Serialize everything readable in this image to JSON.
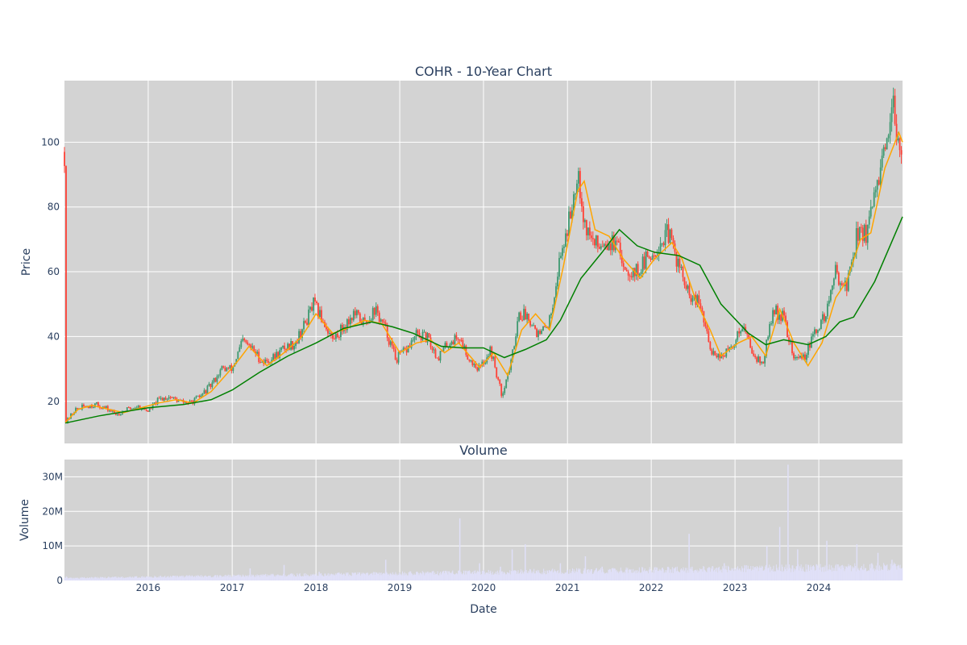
{
  "chart_data": {
    "type": "candlestick",
    "title": "COHR - 10-Year Chart",
    "xlabel": "Date",
    "x_ticks": [
      "2016",
      "2017",
      "2018",
      "2019",
      "2020",
      "2021",
      "2022",
      "2023",
      "2024"
    ],
    "x_range": [
      "2015-01-01",
      "2024-12-31"
    ],
    "price_panel": {
      "ylabel": "Price",
      "ylim": [
        7,
        119
      ],
      "y_ticks": [
        20,
        40,
        60,
        80,
        100
      ],
      "y_tick_labels": [
        "20",
        "40",
        "60",
        "80",
        "100"
      ],
      "grid": true,
      "series": [
        {
          "kind": "candlestick",
          "up_color": "#3d9970",
          "down_color": "#ff4136",
          "close": [
            [
              "2015-01-05",
              13.3
            ],
            [
              "2015-02-15",
              17.3
            ],
            [
              "2015-04-01",
              18.5
            ],
            [
              "2015-05-15",
              19.0
            ],
            [
              "2015-07-01",
              17.8
            ],
            [
              "2015-08-15",
              16.0
            ],
            [
              "2015-10-01",
              17.5
            ],
            [
              "2015-11-15",
              18.5
            ],
            [
              "2016-01-01",
              17.0
            ],
            [
              "2016-02-15",
              20.5
            ],
            [
              "2016-04-01",
              21.5
            ],
            [
              "2016-05-15",
              20.0
            ],
            [
              "2016-07-01",
              19.5
            ],
            [
              "2016-08-15",
              21.5
            ],
            [
              "2016-10-01",
              25.0
            ],
            [
              "2016-11-15",
              30.0
            ],
            [
              "2017-01-01",
              30.0
            ],
            [
              "2017-02-15",
              38.5
            ],
            [
              "2017-04-01",
              36.0
            ],
            [
              "2017-05-15",
              32.0
            ],
            [
              "2017-07-01",
              33.5
            ],
            [
              "2017-08-15",
              36.5
            ],
            [
              "2017-10-01",
              38.0
            ],
            [
              "2017-11-15",
              44.0
            ],
            [
              "2017-12-20",
              50.0
            ],
            [
              "2018-02-01",
              45.0
            ],
            [
              "2018-03-15",
              39.0
            ],
            [
              "2018-05-01",
              43.0
            ],
            [
              "2018-06-15",
              47.0
            ],
            [
              "2018-08-01",
              44.0
            ],
            [
              "2018-09-15",
              48.5
            ],
            [
              "2018-11-01",
              42.0
            ],
            [
              "2018-12-15",
              33.0
            ],
            [
              "2019-02-01",
              36.0
            ],
            [
              "2019-03-15",
              40.5
            ],
            [
              "2019-05-01",
              39.5
            ],
            [
              "2019-06-15",
              33.5
            ],
            [
              "2019-08-01",
              38.0
            ],
            [
              "2019-09-15",
              40.0
            ],
            [
              "2019-11-01",
              33.0
            ],
            [
              "2019-12-15",
              30.0
            ],
            [
              "2020-02-01",
              36.0
            ],
            [
              "2020-03-20",
              22.0
            ],
            [
              "2020-05-01",
              32.0
            ],
            [
              "2020-06-01",
              47.0
            ],
            [
              "2020-07-15",
              46.5
            ],
            [
              "2020-09-01",
              40.0
            ],
            [
              "2020-10-15",
              45.0
            ],
            [
              "2020-12-01",
              65.0
            ],
            [
              "2021-01-15",
              78.0
            ],
            [
              "2021-02-15",
              93.0
            ],
            [
              "2021-03-15",
              75.0
            ],
            [
              "2021-05-01",
              68.0
            ],
            [
              "2021-06-15",
              70.0
            ],
            [
              "2021-08-01",
              68.0
            ],
            [
              "2021-09-15",
              61.0
            ],
            [
              "2021-11-01",
              60.0
            ],
            [
              "2021-12-15",
              64.0
            ],
            [
              "2022-02-01",
              68.0
            ],
            [
              "2022-03-15",
              72.0
            ],
            [
              "2022-05-01",
              62.0
            ],
            [
              "2022-06-15",
              52.0
            ],
            [
              "2022-08-01",
              50.0
            ],
            [
              "2022-09-15",
              36.0
            ],
            [
              "2022-11-01",
              34.0
            ],
            [
              "2022-12-15",
              36.0
            ],
            [
              "2023-02-01",
              44.0
            ],
            [
              "2023-03-15",
              36.0
            ],
            [
              "2023-05-01",
              31.0
            ],
            [
              "2023-06-15",
              48.0
            ],
            [
              "2023-08-01",
              46.0
            ],
            [
              "2023-09-15",
              33.0
            ],
            [
              "2023-11-01",
              34.0
            ],
            [
              "2023-12-15",
              41.0
            ],
            [
              "2024-02-01",
              47.0
            ],
            [
              "2024-03-15",
              60.0
            ],
            [
              "2024-05-01",
              55.0
            ],
            [
              "2024-06-15",
              72.0
            ],
            [
              "2024-08-01",
              72.0
            ],
            [
              "2024-09-15",
              88.0
            ],
            [
              "2024-11-01",
              100.0
            ],
            [
              "2024-11-20",
              110.0
            ],
            [
              "2024-12-31",
              97.0
            ]
          ]
        },
        {
          "kind": "line",
          "color": "#ffa500",
          "points": [
            [
              "2015-01-05",
              13.5
            ],
            [
              "2015-03-01",
              17.5
            ],
            [
              "2015-05-01",
              18.8
            ],
            [
              "2015-07-15",
              17.5
            ],
            [
              "2015-09-15",
              16.5
            ],
            [
              "2015-12-01",
              18.0
            ],
            [
              "2016-02-15",
              19.5
            ],
            [
              "2016-05-01",
              20.5
            ],
            [
              "2016-07-15",
              19.5
            ],
            [
              "2016-10-01",
              23.0
            ],
            [
              "2016-12-15",
              29.0
            ],
            [
              "2017-02-01",
              33.0
            ],
            [
              "2017-03-15",
              37.0
            ],
            [
              "2017-06-01",
              31.0
            ],
            [
              "2017-08-15",
              35.0
            ],
            [
              "2017-11-01",
              40.0
            ],
            [
              "2018-01-01",
              47.0
            ],
            [
              "2018-03-15",
              41.0
            ],
            [
              "2018-05-15",
              42.5
            ],
            [
              "2018-08-01",
              45.0
            ],
            [
              "2018-10-15",
              44.0
            ],
            [
              "2019-01-01",
              35.0
            ],
            [
              "2019-03-15",
              38.0
            ],
            [
              "2019-05-15",
              39.0
            ],
            [
              "2019-07-15",
              35.0
            ],
            [
              "2019-09-15",
              38.0
            ],
            [
              "2019-12-15",
              30.5
            ],
            [
              "2020-02-15",
              35.0
            ],
            [
              "2020-04-15",
              28.0
            ],
            [
              "2020-06-15",
              42.0
            ],
            [
              "2020-08-15",
              47.0
            ],
            [
              "2020-10-15",
              42.0
            ],
            [
              "2020-12-15",
              62.0
            ],
            [
              "2021-02-15",
              85.0
            ],
            [
              "2021-03-15",
              88.0
            ],
            [
              "2021-05-01",
              73.0
            ],
            [
              "2021-07-01",
              71.0
            ],
            [
              "2021-09-01",
              64.0
            ],
            [
              "2021-11-15",
              58.0
            ],
            [
              "2022-01-15",
              64.0
            ],
            [
              "2022-04-01",
              69.0
            ],
            [
              "2022-05-15",
              64.0
            ],
            [
              "2022-07-15",
              51.0
            ],
            [
              "2022-09-15",
              42.0
            ],
            [
              "2022-11-01",
              34.0
            ],
            [
              "2023-01-15",
              38.0
            ],
            [
              "2023-03-15",
              40.0
            ],
            [
              "2023-05-15",
              34.0
            ],
            [
              "2023-07-15",
              48.5
            ],
            [
              "2023-09-15",
              38.0
            ],
            [
              "2023-11-15",
              31.0
            ],
            [
              "2024-01-15",
              38.0
            ],
            [
              "2024-03-15",
              52.0
            ],
            [
              "2024-05-01",
              57.0
            ],
            [
              "2024-07-01",
              70.0
            ],
            [
              "2024-08-15",
              72.0
            ],
            [
              "2024-10-15",
              92.0
            ],
            [
              "2024-12-15",
              103.0
            ],
            [
              "2024-12-31",
              100.0
            ]
          ]
        },
        {
          "kind": "line",
          "color": "#008000",
          "points": [
            [
              "2015-01-05",
              13.3
            ],
            [
              "2015-06-01",
              15.5
            ],
            [
              "2016-01-01",
              18.0
            ],
            [
              "2016-06-01",
              19.0
            ],
            [
              "2016-10-01",
              20.5
            ],
            [
              "2017-01-01",
              23.5
            ],
            [
              "2017-05-01",
              29.0
            ],
            [
              "2017-09-01",
              34.0
            ],
            [
              "2018-01-01",
              38.0
            ],
            [
              "2018-05-01",
              42.5
            ],
            [
              "2018-09-01",
              44.5
            ],
            [
              "2018-12-01",
              43.0
            ],
            [
              "2019-03-01",
              41.0
            ],
            [
              "2019-07-01",
              37.0
            ],
            [
              "2019-10-01",
              36.5
            ],
            [
              "2020-01-01",
              36.5
            ],
            [
              "2020-04-01",
              33.5
            ],
            [
              "2020-07-01",
              36.0
            ],
            [
              "2020-10-01",
              39.0
            ],
            [
              "2020-12-01",
              45.0
            ],
            [
              "2021-03-01",
              58.0
            ],
            [
              "2021-06-01",
              66.0
            ],
            [
              "2021-08-15",
              73.0
            ],
            [
              "2021-11-01",
              68.0
            ],
            [
              "2022-01-15",
              66.0
            ],
            [
              "2022-05-01",
              65.0
            ],
            [
              "2022-08-01",
              62.0
            ],
            [
              "2022-11-01",
              50.0
            ],
            [
              "2023-03-01",
              41.0
            ],
            [
              "2023-05-15",
              37.5
            ],
            [
              "2023-08-01",
              39.0
            ],
            [
              "2023-11-15",
              37.5
            ],
            [
              "2024-02-01",
              40.0
            ],
            [
              "2024-04-01",
              44.5
            ],
            [
              "2024-06-01",
              46.0
            ],
            [
              "2024-09-01",
              57.0
            ],
            [
              "2024-12-31",
              77.0
            ]
          ]
        }
      ]
    },
    "volume_panel": {
      "title": "Volume",
      "ylabel": "Volume",
      "ylim": [
        0,
        35000000
      ],
      "y_ticks": [
        0,
        10000000,
        20000000,
        30000000
      ],
      "y_tick_labels": [
        "0",
        "10M",
        "20M",
        "30M"
      ],
      "bar_color": "#e0e0f8",
      "spikes": [
        [
          "2015-01-10",
          1200000
        ],
        [
          "2015-08-01",
          900000
        ],
        [
          "2016-06-01",
          1000000
        ],
        [
          "2017-03-20",
          3500000
        ],
        [
          "2017-08-15",
          4500000
        ],
        [
          "2018-01-15",
          2500000
        ],
        [
          "2018-11-01",
          6000000
        ],
        [
          "2019-03-15",
          2500000
        ],
        [
          "2019-09-20",
          18000000
        ],
        [
          "2019-12-15",
          5000000
        ],
        [
          "2020-03-15",
          4000000
        ],
        [
          "2020-05-05",
          9000000
        ],
        [
          "2020-07-01",
          10500000
        ],
        [
          "2020-12-01",
          5000000
        ],
        [
          "2021-03-20",
          7000000
        ],
        [
          "2021-06-01",
          4000000
        ],
        [
          "2022-06-15",
          13500000
        ],
        [
          "2022-11-15",
          5000000
        ],
        [
          "2023-05-20",
          10000000
        ],
        [
          "2023-07-15",
          15500000
        ],
        [
          "2023-08-20",
          33500000
        ],
        [
          "2023-10-01",
          9000000
        ],
        [
          "2024-02-05",
          11500000
        ],
        [
          "2024-06-15",
          10500000
        ],
        [
          "2024-09-15",
          8000000
        ],
        [
          "2024-11-15",
          6000000
        ]
      ]
    }
  }
}
